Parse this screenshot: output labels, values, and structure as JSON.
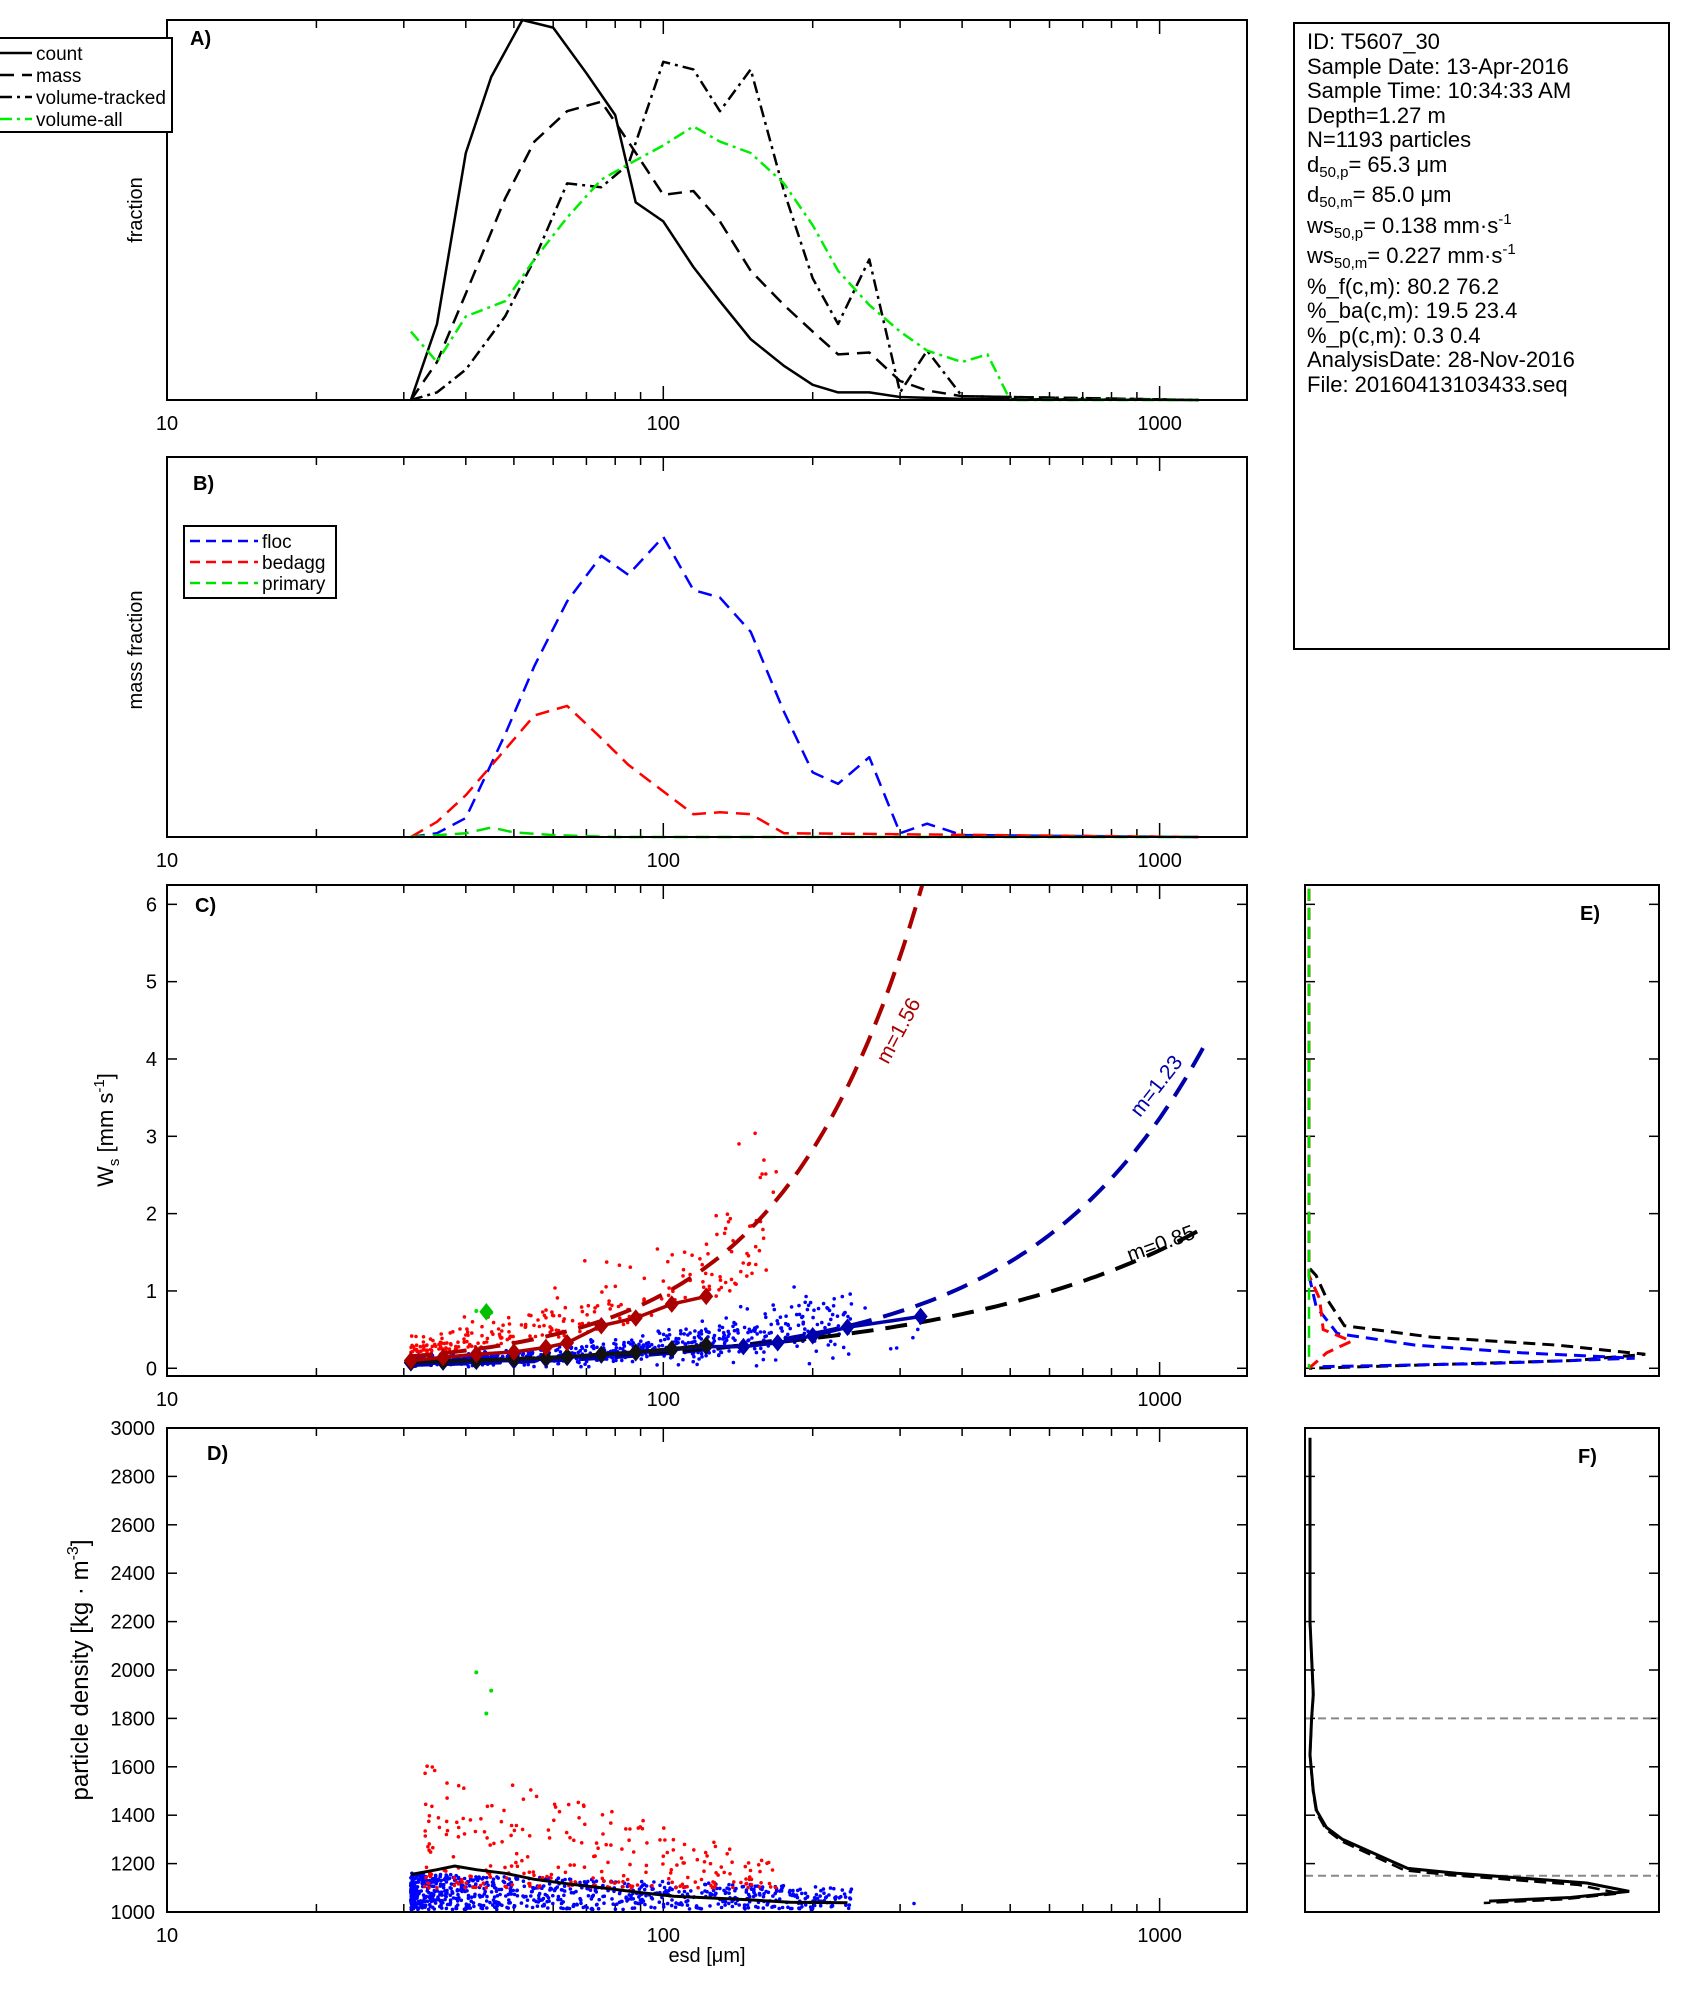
{
  "info_box": {
    "lines": [
      {
        "text": "ID: T5607_30"
      },
      {
        "text": "Sample Date: 13-Apr-2016"
      },
      {
        "text": "Sample Time: 10:34:33 AM"
      },
      {
        "text": "Depth=1.27 m"
      },
      {
        "text": "N=1193 particles"
      },
      {
        "pre": "d",
        "sub": "50,p",
        "post": "=  65.3 μm"
      },
      {
        "pre": "d",
        "sub": "50,m",
        "post": "=  85.0 μm"
      },
      {
        "pre": "ws",
        "sub": "50,p",
        "post": "= 0.138 mm·s",
        "sup": "-1"
      },
      {
        "pre": "ws",
        "sub": "50,m",
        "post": "= 0.227 mm·s",
        "sup": "-1"
      },
      {
        "text": "%_f(c,m): 80.2 76.2"
      },
      {
        "text": "%_ba(c,m): 19.5 23.4"
      },
      {
        "text": "%_p(c,m): 0.3 0.4"
      },
      {
        "text": "AnalysisDate: 28-Nov-2016"
      },
      {
        "text": "File: 20160413103433.seq"
      }
    ]
  },
  "colors": {
    "floc": "#0000ff",
    "bedagg": "#ff0000",
    "primary": "#00e000",
    "black": "#000000",
    "dark_red": "#aa0000",
    "dark_blue": "#0000aa",
    "grey": "#888888",
    "volume_all": "#00ee00"
  },
  "chart_data": [
    {
      "id": "A",
      "panel_label": "A)",
      "type": "line",
      "ylabel": "fraction",
      "xscale": "log",
      "xlim": [
        10,
        1500
      ],
      "ylim": [
        0,
        1
      ],
      "xtick_labels": [
        {
          "v": 10,
          "label": "10"
        },
        {
          "v": 100,
          "label": "100"
        },
        {
          "v": 1000,
          "label": "1000"
        }
      ],
      "legend": {
        "placement": "outside-top-left",
        "entries": [
          {
            "label": "count",
            "style": "solid",
            "color": "#000000"
          },
          {
            "label": "mass",
            "style": "dashed",
            "color": "#000000"
          },
          {
            "label": "volume-tracked",
            "style": "dashdot",
            "color": "#000000"
          },
          {
            "label": "volume-all",
            "style": "dashdot",
            "color": "#00ee00"
          }
        ]
      },
      "series": [
        {
          "name": "count",
          "style": "solid",
          "color": "#000000",
          "width": 2.5,
          "points": [
            [
              31,
              0
            ],
            [
              35,
              0.2
            ],
            [
              40,
              0.65
            ],
            [
              45,
              0.85
            ],
            [
              52,
              1.0
            ],
            [
              60,
              0.98
            ],
            [
              70,
              0.86
            ],
            [
              80,
              0.75
            ],
            [
              88,
              0.52
            ],
            [
              100,
              0.47
            ],
            [
              115,
              0.35
            ],
            [
              130,
              0.26
            ],
            [
              150,
              0.16
            ],
            [
              175,
              0.09
            ],
            [
              200,
              0.04
            ],
            [
              225,
              0.02
            ],
            [
              260,
              0.02
            ],
            [
              300,
              0.008
            ],
            [
              400,
              0.003
            ],
            [
              1200,
              0
            ]
          ]
        },
        {
          "name": "mass",
          "style": "dashed",
          "color": "#000000",
          "width": 2.5,
          "points": [
            [
              31,
              0
            ],
            [
              35,
              0.1
            ],
            [
              40,
              0.28
            ],
            [
              48,
              0.53
            ],
            [
              55,
              0.68
            ],
            [
              64,
              0.76
            ],
            [
              75,
              0.785
            ],
            [
              85,
              0.68
            ],
            [
              100,
              0.54
            ],
            [
              115,
              0.55
            ],
            [
              130,
              0.47
            ],
            [
              150,
              0.34
            ],
            [
              175,
              0.25
            ],
            [
              200,
              0.18
            ],
            [
              225,
              0.12
            ],
            [
              260,
              0.125
            ],
            [
              300,
              0.05
            ],
            [
              340,
              0.025
            ],
            [
              400,
              0.01
            ],
            [
              1200,
              0
            ]
          ]
        },
        {
          "name": "volume-tracked",
          "style": "dashdot",
          "color": "#000000",
          "width": 2.5,
          "points": [
            [
              31,
              0
            ],
            [
              35,
              0.02
            ],
            [
              40,
              0.08
            ],
            [
              48,
              0.22
            ],
            [
              55,
              0.37
            ],
            [
              64,
              0.57
            ],
            [
              75,
              0.56
            ],
            [
              85,
              0.62
            ],
            [
              100,
              0.89
            ],
            [
              115,
              0.87
            ],
            [
              130,
              0.76
            ],
            [
              150,
              0.87
            ],
            [
              175,
              0.55
            ],
            [
              200,
              0.32
            ],
            [
              225,
              0.2
            ],
            [
              260,
              0.37
            ],
            [
              300,
              0.02
            ],
            [
              340,
              0.13
            ],
            [
              400,
              0.01
            ],
            [
              1200,
              0
            ]
          ]
        },
        {
          "name": "volume-all",
          "style": "dashdot",
          "color": "#00ee00",
          "width": 2.5,
          "points": [
            [
              31,
              0.18
            ],
            [
              35,
              0.1
            ],
            [
              40,
              0.22
            ],
            [
              48,
              0.26
            ],
            [
              55,
              0.37
            ],
            [
              64,
              0.48
            ],
            [
              75,
              0.58
            ],
            [
              85,
              0.62
            ],
            [
              100,
              0.67
            ],
            [
              115,
              0.72
            ],
            [
              130,
              0.68
            ],
            [
              150,
              0.65
            ],
            [
              175,
              0.57
            ],
            [
              200,
              0.46
            ],
            [
              225,
              0.34
            ],
            [
              260,
              0.25
            ],
            [
              300,
              0.18
            ],
            [
              340,
              0.13
            ],
            [
              400,
              0.1
            ],
            [
              450,
              0.12
            ],
            [
              500,
              0
            ],
            [
              1200,
              0
            ]
          ]
        }
      ]
    },
    {
      "id": "B",
      "panel_label": "B)",
      "type": "line",
      "ylabel": "mass fraction",
      "xscale": "log",
      "xlim": [
        10,
        1500
      ],
      "ylim": [
        0,
        1
      ],
      "xtick_labels": [
        {
          "v": 10,
          "label": "10"
        },
        {
          "v": 100,
          "label": "100"
        },
        {
          "v": 1000,
          "label": "1000"
        }
      ],
      "legend": {
        "placement": "top-left",
        "entries": [
          {
            "label": "floc",
            "style": "dashed",
            "color": "#0000ff"
          },
          {
            "label": "bedagg",
            "style": "dashed",
            "color": "#ff0000"
          },
          {
            "label": "primary",
            "style": "dashed",
            "color": "#00e000"
          }
        ]
      },
      "series": [
        {
          "name": "floc",
          "style": "dashed",
          "color": "#0000ff",
          "width": 2.5,
          "points": [
            [
              31,
              0
            ],
            [
              35,
              0.01
            ],
            [
              40,
              0.05
            ],
            [
              48,
              0.27
            ],
            [
              55,
              0.45
            ],
            [
              64,
              0.62
            ],
            [
              75,
              0.74
            ],
            [
              85,
              0.69
            ],
            [
              100,
              0.79
            ],
            [
              115,
              0.65
            ],
            [
              130,
              0.63
            ],
            [
              150,
              0.54
            ],
            [
              175,
              0.33
            ],
            [
              200,
              0.17
            ],
            [
              225,
              0.14
            ],
            [
              260,
              0.21
            ],
            [
              300,
              0.01
            ],
            [
              340,
              0.035
            ],
            [
              400,
              0.005
            ],
            [
              1200,
              0
            ]
          ]
        },
        {
          "name": "bedagg",
          "style": "dashed",
          "color": "#ff0000",
          "width": 2.5,
          "points": [
            [
              31,
              0
            ],
            [
              35,
              0.04
            ],
            [
              40,
              0.11
            ],
            [
              48,
              0.23
            ],
            [
              55,
              0.32
            ],
            [
              64,
              0.345
            ],
            [
              75,
              0.26
            ],
            [
              85,
              0.19
            ],
            [
              100,
              0.12
            ],
            [
              115,
              0.06
            ],
            [
              130,
              0.065
            ],
            [
              150,
              0.06
            ],
            [
              175,
              0.01
            ],
            [
              1200,
              0
            ]
          ]
        },
        {
          "name": "primary",
          "style": "dashed",
          "color": "#00e000",
          "width": 2.5,
          "points": [
            [
              31,
              0
            ],
            [
              40,
              0.01
            ],
            [
              45,
              0.025
            ],
            [
              50,
              0.012
            ],
            [
              60,
              0.005
            ],
            [
              80,
              0
            ],
            [
              1200,
              0
            ]
          ]
        }
      ]
    },
    {
      "id": "C",
      "panel_label": "C)",
      "type": "scatter",
      "ylabel": "W_s [mm s^-1]",
      "xscale": "log",
      "xlim": [
        10,
        1500
      ],
      "ylim": [
        -0.1,
        6.25
      ],
      "yticks": [
        0,
        1,
        2,
        3,
        4,
        5,
        6
      ],
      "xtick_labels": [
        {
          "v": 10,
          "label": "10"
        },
        {
          "v": 100,
          "label": "100"
        },
        {
          "v": 1000,
          "label": "1000"
        }
      ],
      "fit_curves": [
        {
          "label": "m=1.56",
          "color": "#aa0000",
          "coef": 0.000728,
          "exponent": 1.56
        },
        {
          "label": "m=1.23",
          "color": "#0000aa",
          "coef": 0.00066,
          "exponent": 1.23
        },
        {
          "label": "m=0.85",
          "color": "#000000",
          "coef": 0.0043,
          "exponent": 0.85
        }
      ],
      "bin_means": {
        "bedagg": [
          [
            31,
            0.1
          ],
          [
            36,
            0.14
          ],
          [
            42,
            0.18
          ],
          [
            50,
            0.21
          ],
          [
            58,
            0.27
          ],
          [
            64,
            0.33
          ],
          [
            75,
            0.55
          ],
          [
            88,
            0.65
          ],
          [
            104,
            0.83
          ],
          [
            122,
            0.93
          ]
        ],
        "floc": [
          [
            31,
            0.07
          ],
          [
            36,
            0.08
          ],
          [
            42,
            0.09
          ],
          [
            50,
            0.1
          ],
          [
            58,
            0.12
          ],
          [
            64,
            0.14
          ],
          [
            75,
            0.17
          ],
          [
            88,
            0.2
          ],
          [
            104,
            0.24
          ],
          [
            122,
            0.28
          ],
          [
            145,
            0.28
          ],
          [
            170,
            0.33
          ],
          [
            200,
            0.42
          ],
          [
            235,
            0.53
          ],
          [
            330,
            0.67
          ]
        ],
        "all": [
          [
            31,
            0.08
          ],
          [
            36,
            0.09
          ],
          [
            42,
            0.1
          ],
          [
            50,
            0.12
          ],
          [
            58,
            0.13
          ],
          [
            64,
            0.15
          ],
          [
            75,
            0.18
          ],
          [
            88,
            0.21
          ],
          [
            104,
            0.25
          ],
          [
            122,
            0.3
          ]
        ],
        "primary": [
          [
            44,
            0.73
          ]
        ]
      },
      "scatter_ranges": {
        "floc_x": [
          31,
          330
        ],
        "bedagg_x": [
          31,
          170
        ],
        "primary": [
          [
            42,
            0.74
          ],
          [
            44,
            0.7
          ],
          [
            45,
            0.72
          ]
        ]
      }
    },
    {
      "id": "D",
      "panel_label": "D)",
      "type": "scatter",
      "ylabel": "particle density [kg · m^-3]",
      "xlabel": "esd [μm]",
      "xscale": "log",
      "xlim": [
        10,
        1500
      ],
      "ylim": [
        1000,
        3000
      ],
      "yticks": [
        1000,
        1200,
        1400,
        1600,
        1800,
        2000,
        2200,
        2400,
        2600,
        2800,
        3000
      ],
      "xtick_labels": [
        {
          "v": 10,
          "label": "10"
        },
        {
          "v": 100,
          "label": "100"
        },
        {
          "v": 1000,
          "label": "1000"
        }
      ],
      "mean_curve": [
        [
          31,
          1155
        ],
        [
          35,
          1175
        ],
        [
          38,
          1190
        ],
        [
          42,
          1175
        ],
        [
          48,
          1160
        ],
        [
          55,
          1135
        ],
        [
          65,
          1115
        ],
        [
          75,
          1100
        ],
        [
          90,
          1080
        ],
        [
          105,
          1065
        ],
        [
          125,
          1058
        ],
        [
          150,
          1050
        ],
        [
          180,
          1040
        ],
        [
          235,
          1038
        ]
      ],
      "primary_points": [
        [
          42,
          1990
        ],
        [
          45,
          1915
        ],
        [
          44,
          1820
        ]
      ],
      "scatter_ranges": {
        "floc_y": [
          1005,
          1160
        ],
        "bedagg_y": [
          1100,
          1620
        ]
      }
    },
    {
      "id": "E",
      "panel_label": "E)",
      "type": "line",
      "series": [
        {
          "name": "mass",
          "style": "dashed",
          "color": "#000000"
        },
        {
          "name": "floc",
          "style": "dashed",
          "color": "#0000ff"
        },
        {
          "name": "bedagg",
          "style": "dashed",
          "color": "#ff0000"
        },
        {
          "name": "primary",
          "style": "dashed",
          "color": "#00e000"
        }
      ]
    },
    {
      "id": "F",
      "panel_label": "F)",
      "type": "line",
      "ylim": [
        1000,
        3000
      ],
      "reference_lines": [
        1150,
        1800
      ]
    }
  ]
}
